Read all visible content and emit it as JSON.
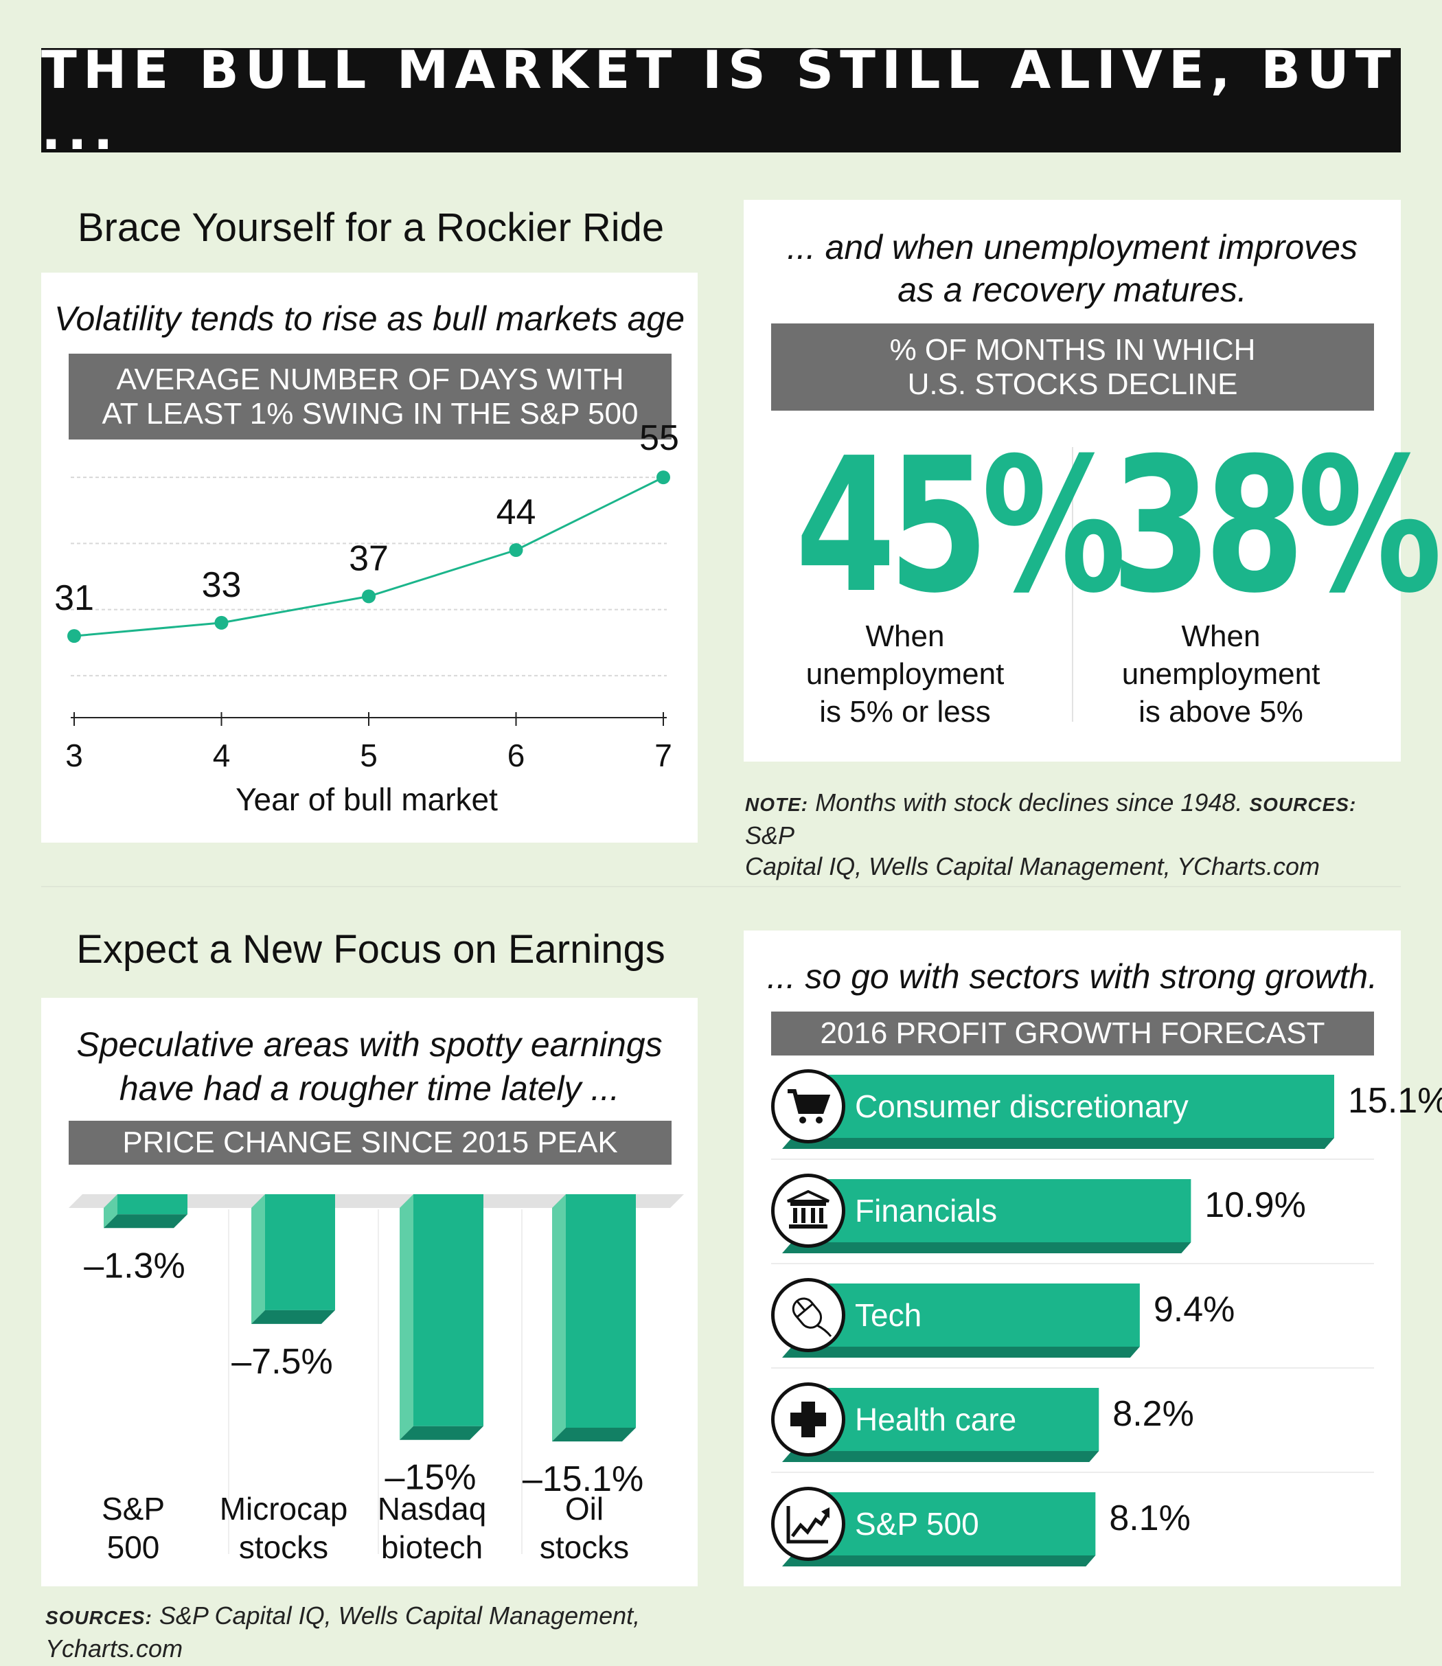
{
  "banner": {
    "title": "THE BULL MARKET IS STILL ALIVE, BUT ..."
  },
  "volatility": {
    "section_title": "Brace Yourself for a Rockier Ride",
    "subtitle": "Volatility tends to rise as bull markets age ...",
    "bar_line1": "AVERAGE NUMBER OF DAYS WITH",
    "bar_line2": "AT LEAST 1% SWING IN THE S&P 500"
  },
  "unemployment": {
    "heading_line1": "... and when unemployment improves",
    "heading_line2": "as a recovery matures.",
    "bar_line1": "% OF MONTHS IN WHICH",
    "bar_line2": "U.S. STOCKS DECLINE",
    "left": {
      "value": "45%",
      "line1": "When",
      "line2": "unemployment",
      "line3": "is 5% or less"
    },
    "right": {
      "value": "38%",
      "line1": "When",
      "line2": "unemployment",
      "line3": "is above 5%"
    },
    "note_label": "NOTE:",
    "note_text": "Months with stock declines since 1948.",
    "sources_label": "SOURCES:",
    "sources_text1": "S&P",
    "sources_text2": "Capital IQ, Wells Capital Management, YCharts.com"
  },
  "earnings": {
    "section_title": "Expect a New Focus on Earnings",
    "subtitle_line1": "Speculative areas with spotty earnings",
    "subtitle_line2": "have had a rougher time lately ...",
    "bar_title": "PRICE CHANGE SINCE 2015 PEAK"
  },
  "sectors": {
    "heading": "... so go with sectors with strong growth.",
    "bar_title": "2016 PROFIT GROWTH FORECAST"
  },
  "footer": {
    "sources_label": "SOURCES:",
    "sources_text": "S&P Capital IQ, Wells Capital Management, Ycharts.com"
  },
  "colors": {
    "accent": "#1bb58b",
    "accent_light": "#5fcfa7",
    "accent_dark": "#128064",
    "banner": "#111111",
    "gray_bar": "#6f6f6f",
    "background": "#e9f2df"
  },
  "chart_data": [
    {
      "type": "line",
      "x": [
        3,
        4,
        5,
        6,
        7
      ],
      "values": [
        31,
        33,
        37,
        44,
        55
      ],
      "labels": [
        "31",
        "33",
        "37",
        "44",
        "55"
      ],
      "xlabel": "Year of bull market",
      "x_ticks": [
        "3",
        "4",
        "5",
        "6",
        "7"
      ],
      "ylim": [
        20,
        60
      ],
      "grid": true
    },
    {
      "type": "bar",
      "categories": [
        [
          "S&P",
          "500"
        ],
        [
          "Microcap",
          "stocks"
        ],
        [
          "Nasdaq",
          "biotech"
        ],
        [
          "Oil",
          "stocks"
        ]
      ],
      "values": [
        -1.3,
        -7.5,
        -15,
        -15.1
      ],
      "labels": [
        "–1.3%",
        "–7.5%",
        "–15%",
        "–15.1%"
      ],
      "ylim": [
        -16,
        0
      ]
    },
    {
      "type": "bar",
      "orientation": "horizontal",
      "categories": [
        "Consumer discretionary",
        "Financials",
        "Tech",
        "Health care",
        "S&P 500"
      ],
      "icons": [
        "shopping-cart-icon",
        "bank-building-icon",
        "computer-mouse-icon",
        "medical-cross-icon",
        "rising-chart-icon"
      ],
      "values": [
        15.1,
        10.9,
        9.4,
        8.2,
        8.1
      ],
      "labels": [
        "15.1%",
        "10.9%",
        "9.4%",
        "8.2%",
        "8.1%"
      ],
      "xlim": [
        0,
        15.1
      ]
    }
  ]
}
